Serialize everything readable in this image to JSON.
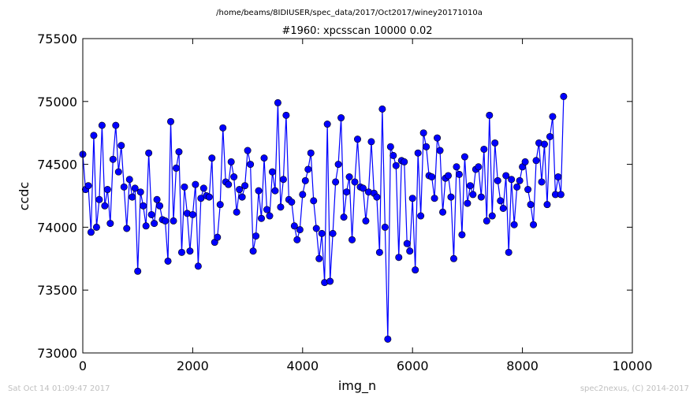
{
  "header": {
    "filepath": "/home/beams/8IDIUSER/spec_data/2017/Oct2017/winey20171010a"
  },
  "footer": {
    "timestamp": "Sat Oct 14 01:09:47 2017",
    "credit": "spec2nexus, (C) 2014-2017"
  },
  "chart_data": {
    "type": "line",
    "title": "#1960: xpcsscan 10000 0.02",
    "xlabel": "img_n",
    "ylabel": "ccdc",
    "xlim": [
      0,
      10000
    ],
    "ylim": [
      73000,
      75500
    ],
    "xticks": [
      0,
      2000,
      4000,
      6000,
      8000,
      10000
    ],
    "yticks": [
      73000,
      73500,
      74000,
      74500,
      75000,
      75500
    ],
    "grid": false,
    "color": "#0000ff",
    "marker": "circle",
    "x_start": 0,
    "x_step": 50,
    "y": [
      74580,
      74300,
      74330,
      73960,
      74730,
      74000,
      74220,
      74810,
      74170,
      74300,
      74030,
      74540,
      74810,
      74440,
      74650,
      74320,
      73990,
      74380,
      74240,
      74310,
      73650,
      74280,
      74170,
      74010,
      74590,
      74100,
      74030,
      74220,
      74170,
      74060,
      74050,
      73730,
      74840,
      74050,
      74470,
      74600,
      73800,
      74320,
      74110,
      73810,
      74100,
      74340,
      73690,
      74230,
      74310,
      74250,
      74240,
      74550,
      73880,
      73920,
      74180,
      74790,
      74360,
      74340,
      74520,
      74400,
      74120,
      74300,
      74240,
      74330,
      74610,
      74500,
      73810,
      73930,
      74290,
      74070,
      74550,
      74140,
      74090,
      74440,
      74290,
      74990,
      74160,
      74380,
      74890,
      74220,
      74200,
      74010,
      73900,
      73980,
      74260,
      74370,
      74460,
      74590,
      74210,
      73990,
      73750,
      73950,
      73560,
      74820,
      73570,
      73950,
      74360,
      74500,
      74870,
      74080,
      74280,
      74400,
      73900,
      74360,
      74700,
      74320,
      74310,
      74050,
      74280,
      74680,
      74270,
      74240,
      73800,
      74940,
      74000,
      73110,
      74640,
      74570,
      74490,
      73760,
      74530,
      74520,
      73870,
      73810,
      74230,
      73660,
      74590,
      74090,
      74750,
      74640,
      74410,
      74400,
      74230,
      74710,
      74610,
      74120,
      74390,
      74410,
      74240,
      73750,
      74480,
      74420,
      73940,
      74560,
      74190,
      74330,
      74260,
      74460,
      74480,
      74240,
      74620,
      74050,
      74890,
      74090,
      74670,
      74370,
      74210,
      74150,
      74410,
      73800,
      74380,
      74020,
      74320,
      74370,
      74480,
      74520,
      74300,
      74180,
      74020,
      74530,
      74670,
      74360,
      74660,
      74180,
      74720,
      74880,
      74260,
      74400,
      74260,
      75040
    ]
  }
}
